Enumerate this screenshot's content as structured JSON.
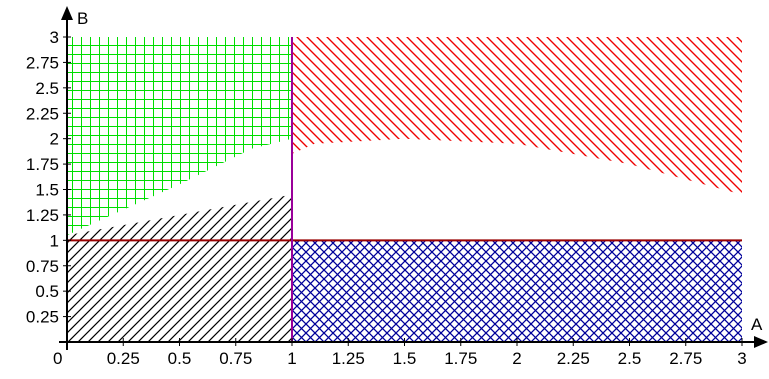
{
  "chart_data": {
    "type": "area",
    "title": "",
    "xlabel": "A",
    "ylabel": "B",
    "xlim": [
      0,
      3
    ],
    "ylim": [
      0,
      3
    ],
    "origin_label": "0",
    "x_ticks": [
      0.25,
      0.5,
      0.75,
      1,
      1.25,
      1.5,
      1.75,
      2,
      2.25,
      2.5,
      2.75,
      3
    ],
    "x_tick_labels": [
      "0.25",
      "0.5",
      "0.75",
      "1",
      "1.25",
      "1.5",
      "1.75",
      "2",
      "2.25",
      "2.5",
      "2.75",
      "3"
    ],
    "y_ticks": [
      0.25,
      0.5,
      0.75,
      1,
      1.25,
      1.5,
      1.75,
      2,
      2.25,
      2.5,
      2.75,
      3
    ],
    "y_tick_labels": [
      "0.25",
      "0.5",
      "0.75",
      "1",
      "1.25",
      "1.5",
      "1.75",
      "2",
      "2.25",
      "2.5",
      "2.75",
      "3"
    ],
    "grid": false,
    "regions": [
      {
        "id": "green-grid",
        "color": "#00dd00",
        "pattern": "grid",
        "polygon": [
          [
            0,
            1.05
          ],
          [
            0,
            3
          ],
          [
            1,
            3
          ],
          [
            1,
            2
          ],
          [
            0.82,
            1.9
          ],
          [
            0.5,
            1.55
          ],
          [
            0.25,
            1.3
          ]
        ]
      },
      {
        "id": "red-diagonal",
        "color": "#ee0000",
        "pattern": "backslash",
        "polygon": [
          [
            1,
            3
          ],
          [
            3,
            3
          ],
          [
            3,
            1.45
          ],
          [
            2.5,
            1.75
          ],
          [
            2,
            1.95
          ],
          [
            1.5,
            2.0
          ],
          [
            1.1,
            1.95
          ],
          [
            1,
            1.85
          ]
        ]
      },
      {
        "id": "black-diagonal",
        "color": "#000000",
        "pattern": "slash",
        "polygon": [
          [
            0,
            0
          ],
          [
            1,
            0
          ],
          [
            1,
            1.45
          ],
          [
            0,
            1.05
          ]
        ]
      },
      {
        "id": "navy-crosshatch",
        "color": "#000099",
        "pattern": "cross",
        "polygon": [
          [
            1,
            0
          ],
          [
            3,
            0
          ],
          [
            3,
            1
          ],
          [
            1,
            1
          ]
        ]
      }
    ],
    "lines": [
      {
        "id": "line-b-equals-1",
        "color": "#990000",
        "points": [
          [
            0,
            1
          ],
          [
            3,
            1
          ]
        ]
      },
      {
        "id": "line-a-equals-1",
        "color": "#990099",
        "points": [
          [
            1,
            0
          ],
          [
            1,
            3
          ]
        ]
      }
    ]
  }
}
